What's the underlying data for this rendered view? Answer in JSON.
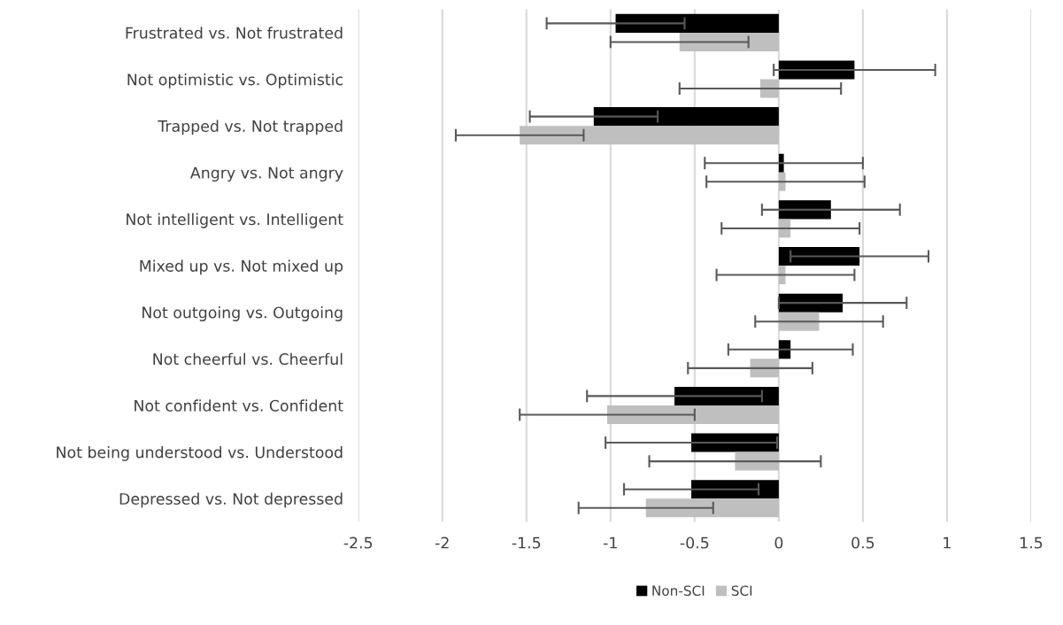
{
  "chart_data": {
    "type": "bar",
    "orientation": "horizontal",
    "categories": [
      "Frustrated vs. Not frustrated",
      "Not optimistic vs. Optimistic",
      "Trapped vs. Not trapped",
      "Angry vs. Not angry",
      "Not intelligent vs. Intelligent",
      "Mixed up vs. Not mixed up",
      "Not outgoing vs. Outgoing",
      "Not cheerful vs. Cheerful",
      "Not confident vs. Confident",
      "Not being understood vs. Understood",
      "Depressed vs. Not depressed"
    ],
    "series": [
      {
        "name": "Non-SCI",
        "color": "#000000",
        "values": [
          -0.97,
          0.45,
          -1.1,
          0.03,
          0.31,
          0.48,
          0.38,
          0.07,
          -0.62,
          -0.52,
          -0.52
        ],
        "errors": [
          0.41,
          0.48,
          0.38,
          0.47,
          0.41,
          0.41,
          0.38,
          0.37,
          0.52,
          0.51,
          0.4
        ]
      },
      {
        "name": "SCI",
        "color": "#bfbfbf",
        "values": [
          -0.59,
          -0.11,
          -1.54,
          0.04,
          0.07,
          0.04,
          0.24,
          -0.17,
          -1.02,
          -0.26,
          -0.79
        ],
        "errors": [
          0.41,
          0.48,
          0.38,
          0.47,
          0.41,
          0.41,
          0.38,
          0.37,
          0.52,
          0.51,
          0.4
        ]
      }
    ],
    "xlim": [
      -2.5,
      1.5
    ],
    "xticks": [
      -2.5,
      -2,
      -1.5,
      -1,
      -0.5,
      0,
      0.5,
      1,
      1.5
    ],
    "grid": "x",
    "legend": "bottom"
  }
}
